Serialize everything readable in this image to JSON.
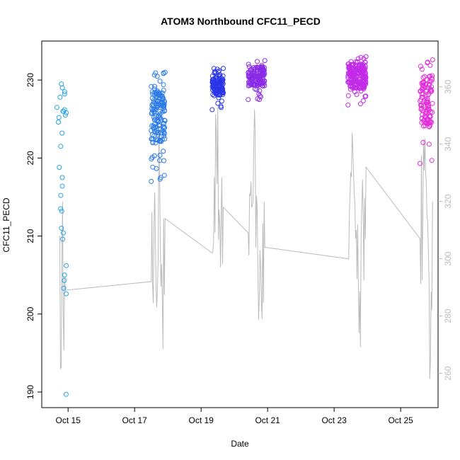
{
  "chart_data": {
    "type": "scatter",
    "title": "ATOM3 Northbound CFC11_PECD",
    "xlabel": "Date",
    "ylabel": "CFC11_PECD",
    "xlim": [
      "2016-10-14 05:00",
      "2016-10-26 03:00"
    ],
    "ylim": [
      188,
      235
    ],
    "y2lim": [
      248,
      376
    ],
    "x_ticks": [
      {
        "date": "2016-10-15",
        "label": "Oct 15"
      },
      {
        "date": "2016-10-17",
        "label": "Oct 17"
      },
      {
        "date": "2016-10-19",
        "label": "Oct 19"
      },
      {
        "date": "2016-10-21",
        "label": "Oct 21"
      },
      {
        "date": "2016-10-23",
        "label": "Oct 23"
      },
      {
        "date": "2016-10-25",
        "label": "Oct 25"
      }
    ],
    "y_ticks": [
      190,
      200,
      210,
      220,
      230
    ],
    "y2_ticks": [
      260,
      280,
      300,
      320,
      340,
      360
    ],
    "grid": false,
    "series": [
      {
        "kind": "scatter",
        "axis": "left",
        "color": "#29A3E6",
        "x": [
          "2016-10-14 18:00",
          "2016-10-14 19:00",
          "2016-10-14 20:00",
          "2016-10-14 21:00",
          "2016-10-14 22:00",
          "2016-10-14 23:00"
        ],
        "clusters": [
          {
            "x": "2016-10-14 18:30",
            "y": [
              226.5,
              226.0,
              225.2,
              224.6,
              223.2,
              221.5,
              218.8,
              217.5,
              216.4,
              215.2,
              213.2,
              211.0,
              209.6
            ]
          },
          {
            "x": "2016-10-14 20:30",
            "y": [
              229.5,
              229.0,
              228.5,
              228.2,
              227.8,
              226.2,
              226.0,
              225.8,
              225.5,
              213.5,
              210.4,
              206.2,
              205.0,
              204.3,
              203.3,
              202.6,
              189.7
            ]
          }
        ]
      },
      {
        "kind": "scatter",
        "axis": "left",
        "color": "#2A7AE8",
        "x_range": [
          "2016-10-17 12:00",
          "2016-10-17 22:00"
        ],
        "y_range": [
          217.0,
          231.0
        ],
        "n": 150
      },
      {
        "kind": "scatter",
        "axis": "left",
        "color": "#2B35E8",
        "x_range": [
          "2016-10-19 08:00",
          "2016-10-19 16:00"
        ],
        "y_range": [
          226.2,
          231.5
        ],
        "n": 120
      },
      {
        "kind": "scatter",
        "axis": "left",
        "color": "#8A2BE8",
        "x_range": [
          "2016-10-20 10:00",
          "2016-10-20 22:00"
        ],
        "y_range": [
          227.5,
          232.5
        ],
        "n": 140
      },
      {
        "kind": "scatter",
        "axis": "left",
        "color": "#C22BE8",
        "x_range": [
          "2016-10-23 10:00",
          "2016-10-23 23:00"
        ],
        "y_range": [
          226.8,
          233.0
        ],
        "n": 220
      },
      {
        "kind": "scatter",
        "axis": "left",
        "color": "#E32BD9",
        "x_range": [
          "2016-10-25 14:00",
          "2016-10-25 23:00"
        ],
        "y_range": [
          219.3,
          232.6
        ],
        "n": 110
      },
      {
        "kind": "line",
        "axis": "right",
        "color": "#bbbbbb",
        "x": [
          "2016-10-14 18:00",
          "2016-10-14 19:00",
          "2016-10-14 20:00",
          "2016-10-14 21:00",
          "2016-10-14 22:00",
          "2016-10-17 12:00",
          "2016-10-17 14:00",
          "2016-10-17 16:00",
          "2016-10-17 18:00",
          "2016-10-17 20:00",
          "2016-10-17 22:00",
          "2016-10-19 08:00",
          "2016-10-19 11:00",
          "2016-10-19 14:00",
          "2016-10-19 16:00",
          "2016-10-20 10:00",
          "2016-10-20 14:00",
          "2016-10-20 18:00",
          "2016-10-20 22:00",
          "2016-10-23 10:00",
          "2016-10-23 14:00",
          "2016-10-23 18:00",
          "2016-10-23 23:00",
          "2016-10-25 14:00",
          "2016-10-25 18:00",
          "2016-10-25 21:00",
          "2016-10-25 23:00"
        ],
        "y": [
          308,
          262,
          320,
          268,
          289,
          292,
          312,
          283,
          334,
          286,
          314,
          302,
          344,
          297,
          318,
          309,
          340,
          286,
          304,
          300,
          330,
          274,
          332,
          307,
          330,
          258,
          320
        ]
      }
    ]
  }
}
